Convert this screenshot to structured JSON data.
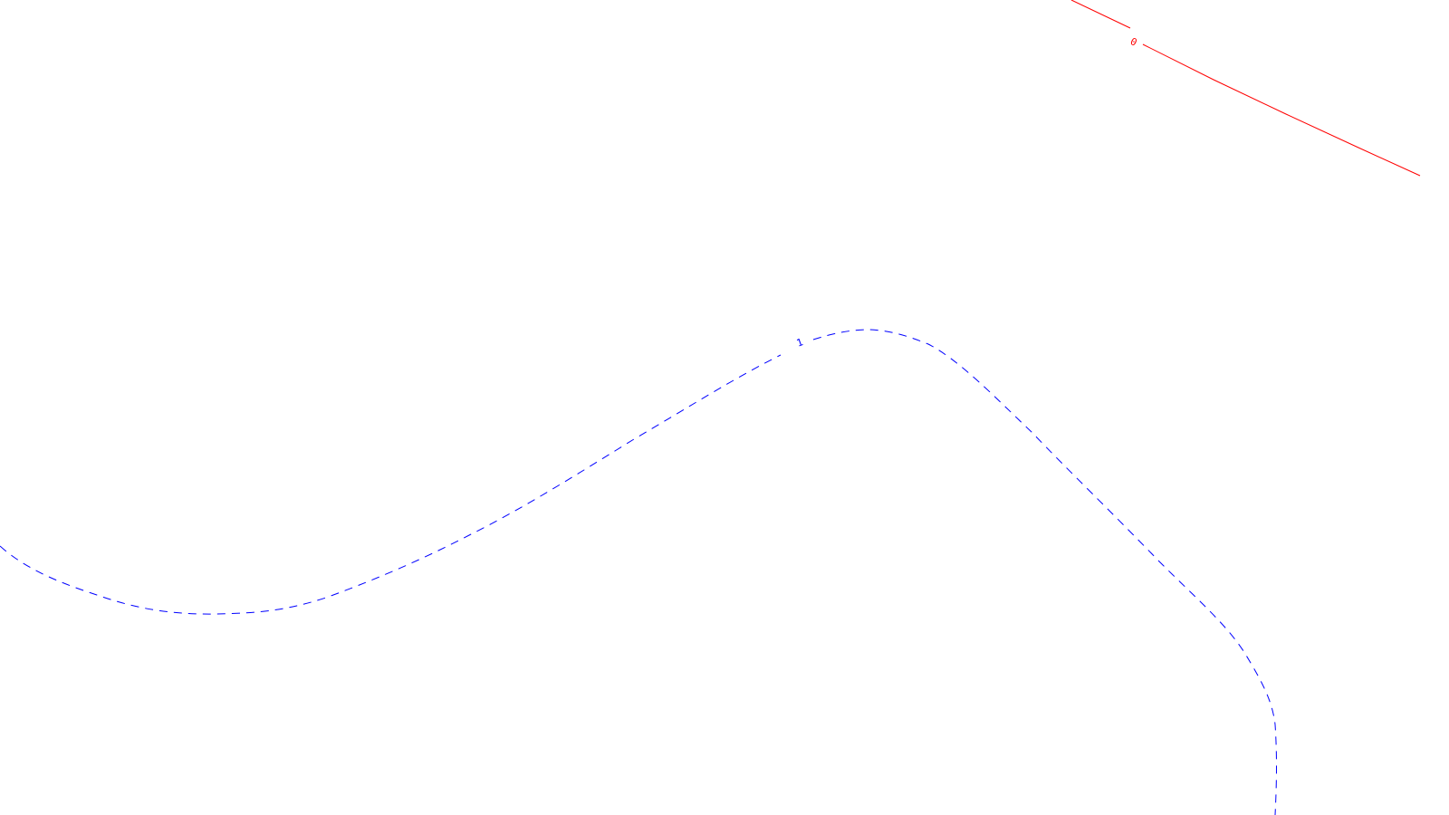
{
  "canvas": {
    "background": "#ffffff"
  },
  "contours": [
    {
      "label": "0",
      "color": "#ff0000",
      "line_style": "solid"
    },
    {
      "label": "1",
      "color": "#0000ff",
      "line_style": "dashed"
    }
  ]
}
